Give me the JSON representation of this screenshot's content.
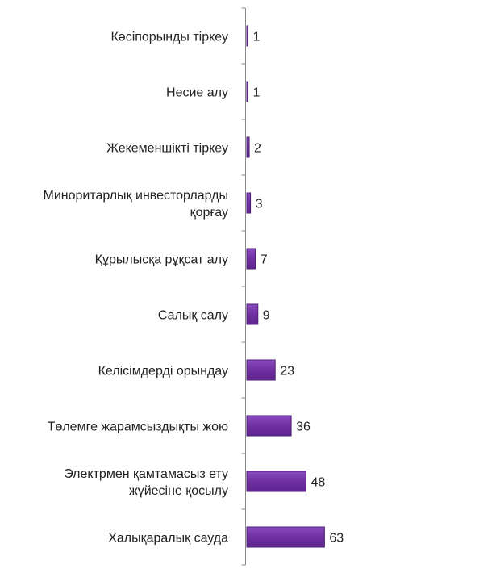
{
  "chart_data": {
    "type": "bar",
    "orientation": "horizontal",
    "title": "",
    "xlabel": "",
    "ylabel": "",
    "categories": [
      "Кәсіпорынды тіркеу",
      "Несие алу",
      "Жекеменшікті тіркеу",
      "Миноритарлық инвесторларды қорғау",
      "Құрылысқа рұқсат алу",
      "Салық салу",
      "Келісімдерді орындау",
      "Төлемге жарамсыздықты жою",
      "Электрмен қамтамасыз ету жүйесіне қосылу",
      "Халықаралық сауда"
    ],
    "category_lines": [
      [
        "Кәсіпорынды тіркеу"
      ],
      [
        "Несие алу"
      ],
      [
        "Жекеменшікті тіркеу"
      ],
      [
        "Миноритарлық инвесторларды",
        "қорғау"
      ],
      [
        "Құрылысқа рұқсат алу"
      ],
      [
        "Салық салу"
      ],
      [
        "Келісімдерді орындау"
      ],
      [
        "Төлемге жарамсыздықты жою"
      ],
      [
        "Электрмен қамтамасыз ету",
        "жүйесіне қосылу"
      ],
      [
        "Халықаралық сауда"
      ]
    ],
    "values": [
      1,
      1,
      2,
      3,
      7,
      9,
      23,
      36,
      48,
      63
    ],
    "value_labels": [
      "1",
      "1",
      "2",
      "3",
      "7",
      "9",
      "23",
      "36",
      "48",
      "63"
    ],
    "axis_direction": "reversed",
    "xlim": [
      0,
      190
    ],
    "grid": false,
    "legend": "none",
    "bar_color": "#7030A0",
    "bar_edge_color": "#4B1E73"
  }
}
